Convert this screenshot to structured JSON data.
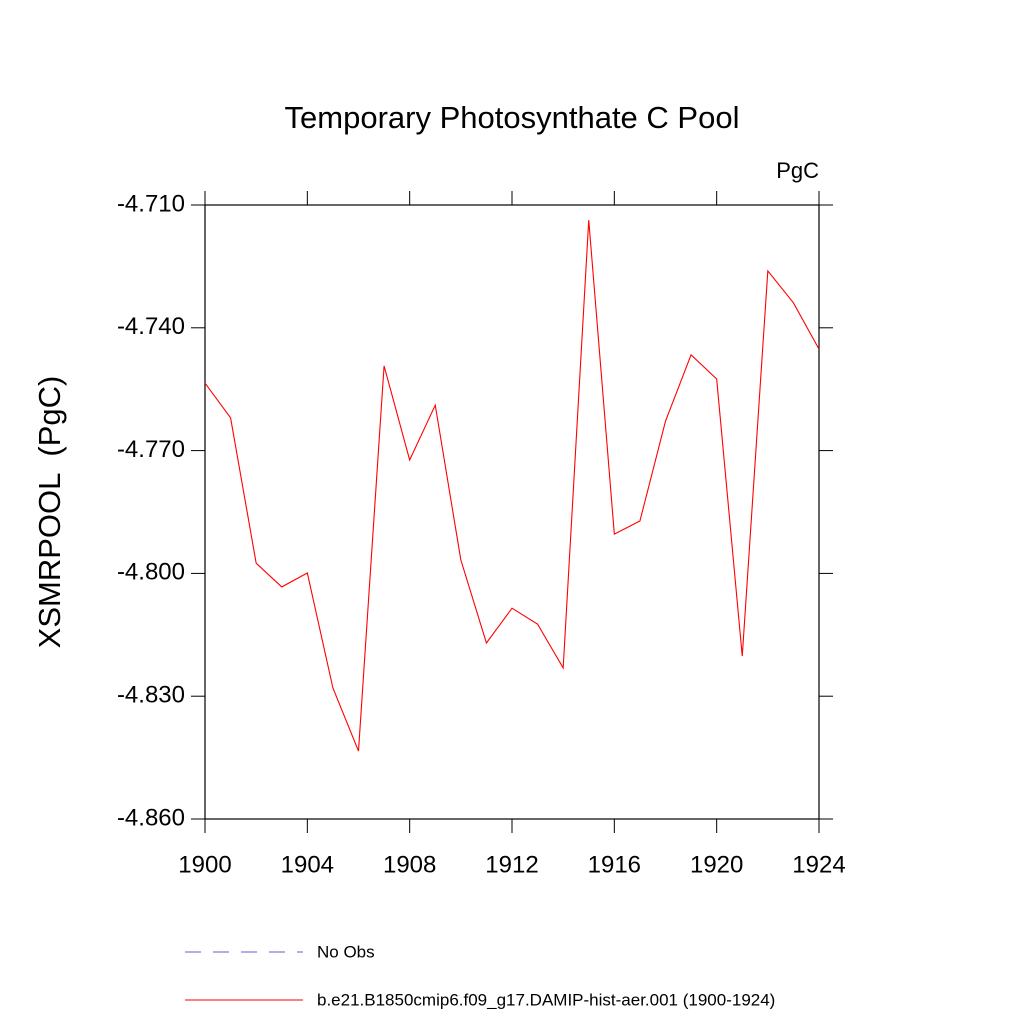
{
  "chart_data": {
    "type": "line",
    "title": "Temporary Photosynthate C Pool",
    "units": "PgC",
    "y_label": "XSMRPOOL  (PgC)",
    "x": [
      1900,
      1901,
      1902,
      1903,
      1904,
      1905,
      1906,
      1907,
      1908,
      1909,
      1910,
      1911,
      1912,
      1913,
      1914,
      1915,
      1916,
      1917,
      1918,
      1919,
      1920,
      1921,
      1922,
      1923,
      1924
    ],
    "series": [
      {
        "name": "No Obs",
        "color": "#6a5acd",
        "dash": true,
        "values": [
          null,
          null,
          null,
          null,
          null,
          null,
          null,
          null,
          null,
          null,
          null,
          null,
          null,
          null,
          null,
          null,
          null,
          null,
          null,
          null,
          null,
          null,
          null,
          null,
          null
        ]
      },
      {
        "name": "b.e21.B1850cmip6.f09_g17.DAMIP-hist-aer.001 (1900-1924)",
        "color": "#ff0000",
        "dash": false,
        "values": [
          -4.7535,
          -4.762,
          -4.7975,
          -4.8033,
          -4.7999,
          -4.828,
          -4.8434,
          -4.7493,
          -4.7723,
          -4.7589,
          -4.7967,
          -4.817,
          -4.8085,
          -4.8124,
          -4.8231,
          -4.7137,
          -4.7904,
          -4.7872,
          -4.7628,
          -4.7466,
          -4.7525,
          -4.8202,
          -4.7261,
          -4.7339,
          -4.7452
        ]
      }
    ],
    "xlim": [
      1900,
      1924
    ],
    "xticks": [
      1900,
      1904,
      1908,
      1912,
      1916,
      1920,
      1924
    ],
    "ylim": [
      -4.86,
      -4.71
    ],
    "yticks": [
      {
        "value": -4.86,
        "label": "-4.860"
      },
      {
        "value": -4.83,
        "label": "-4.830"
      },
      {
        "value": -4.8,
        "label": "-4.800"
      },
      {
        "value": -4.77,
        "label": "-4.770"
      },
      {
        "value": -4.74,
        "label": "-4.740"
      },
      {
        "value": -4.71,
        "label": "-4.710"
      }
    ],
    "grid": false
  }
}
